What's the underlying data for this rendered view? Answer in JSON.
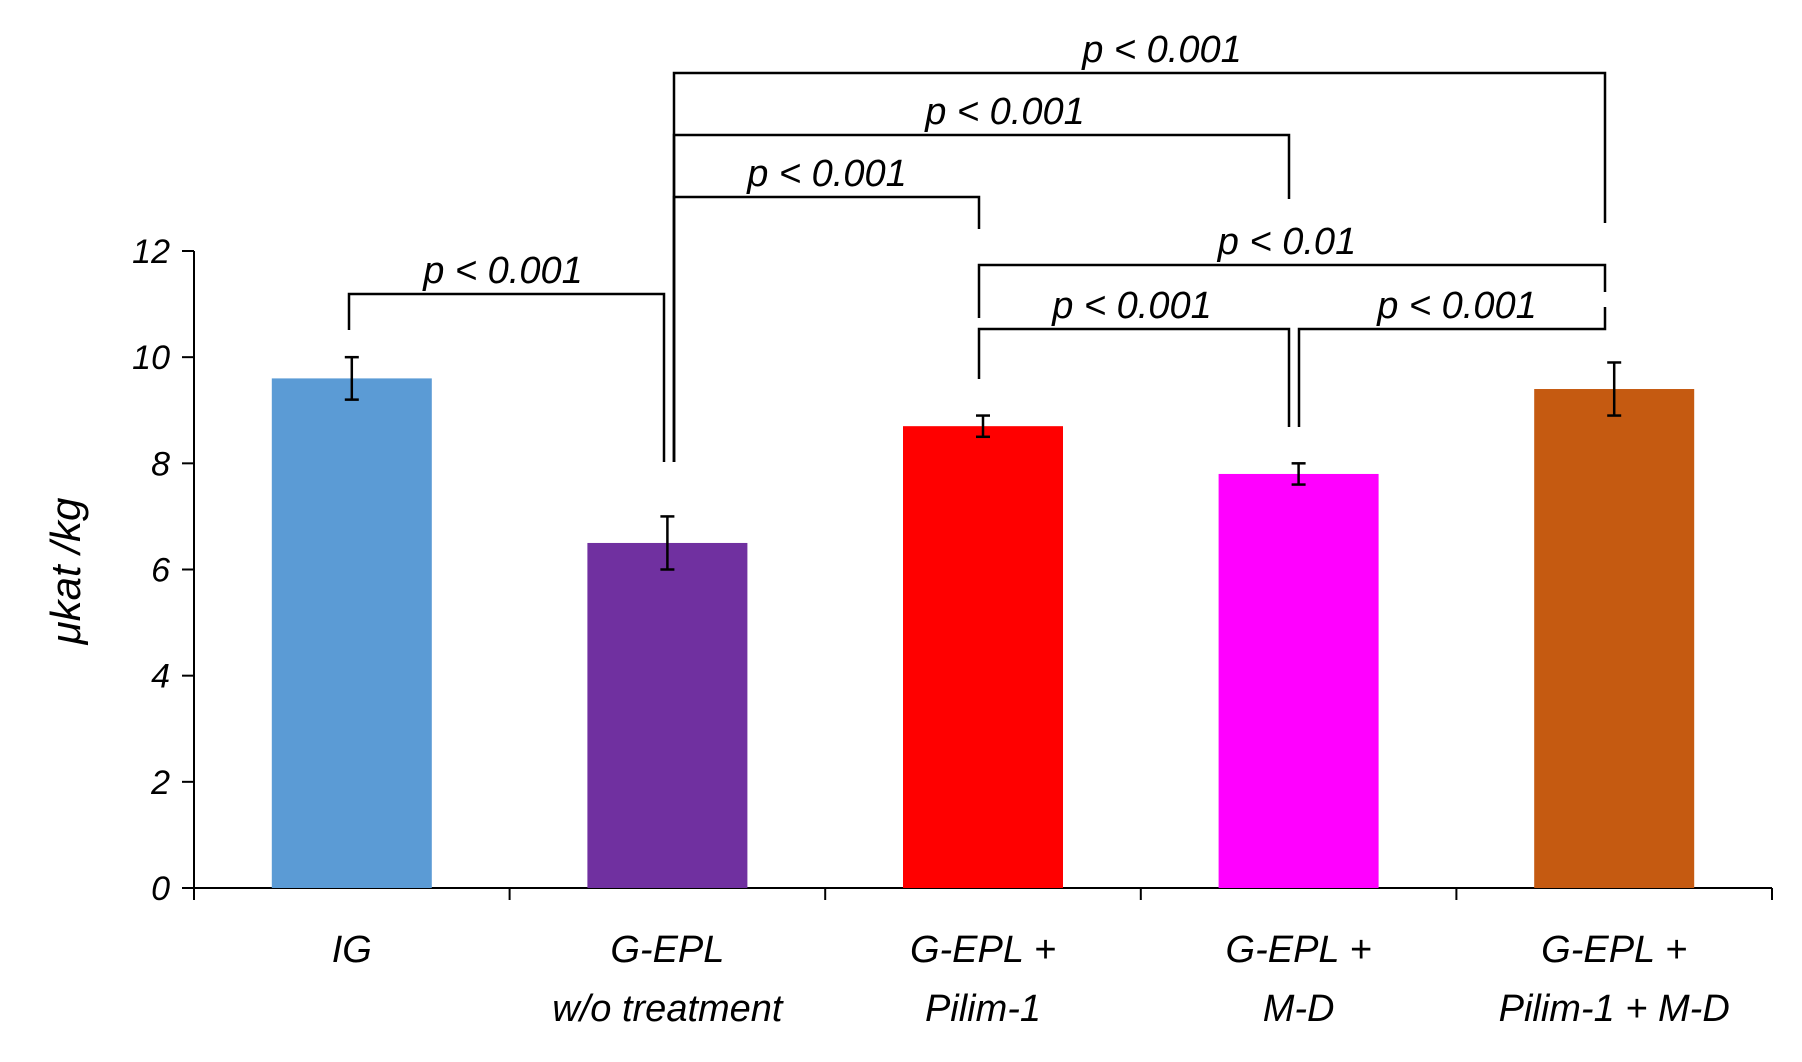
{
  "chart_data": {
    "type": "bar",
    "title": "",
    "xlabel": "",
    "ylabel": "μkat /kg",
    "ylim": [
      0,
      12
    ],
    "yticks": [
      0,
      2,
      4,
      6,
      8,
      10,
      12
    ],
    "yticks_text": [
      "0",
      "2",
      "4",
      "6",
      "8",
      "10",
      "12"
    ],
    "grid": false,
    "legend": "none",
    "categories": [
      [
        "IG"
      ],
      [
        "G-EPL",
        "w/o treatment"
      ],
      [
        "G-EPL +",
        "Pilim-1"
      ],
      [
        "G-EPL +",
        "M-D"
      ],
      [
        "G-EPL +",
        "Pilim-1 + M-D"
      ]
    ],
    "values": [
      9.6,
      6.5,
      8.7,
      7.8,
      9.4
    ],
    "errors": [
      0.4,
      0.5,
      0.2,
      0.2,
      0.5
    ],
    "colors": [
      "#5b9bd5",
      "#7030a0",
      "#ff0000",
      "#ff00ff",
      "#c55a11"
    ],
    "significance": [
      {
        "from": 0,
        "to": 1,
        "label": "p < 0.001"
      },
      {
        "from": 1,
        "to": 2,
        "label": "p < 0.001"
      },
      {
        "from": 1,
        "to": 3,
        "label": "p < 0.001"
      },
      {
        "from": 1,
        "to": 4,
        "label": "p < 0.001"
      },
      {
        "from": 2,
        "to": 3,
        "label": "p < 0.001"
      },
      {
        "from": 3,
        "to": 4,
        "label": "p < 0.001"
      },
      {
        "from": 2,
        "to": 4,
        "label": "p < 0.01"
      }
    ]
  }
}
